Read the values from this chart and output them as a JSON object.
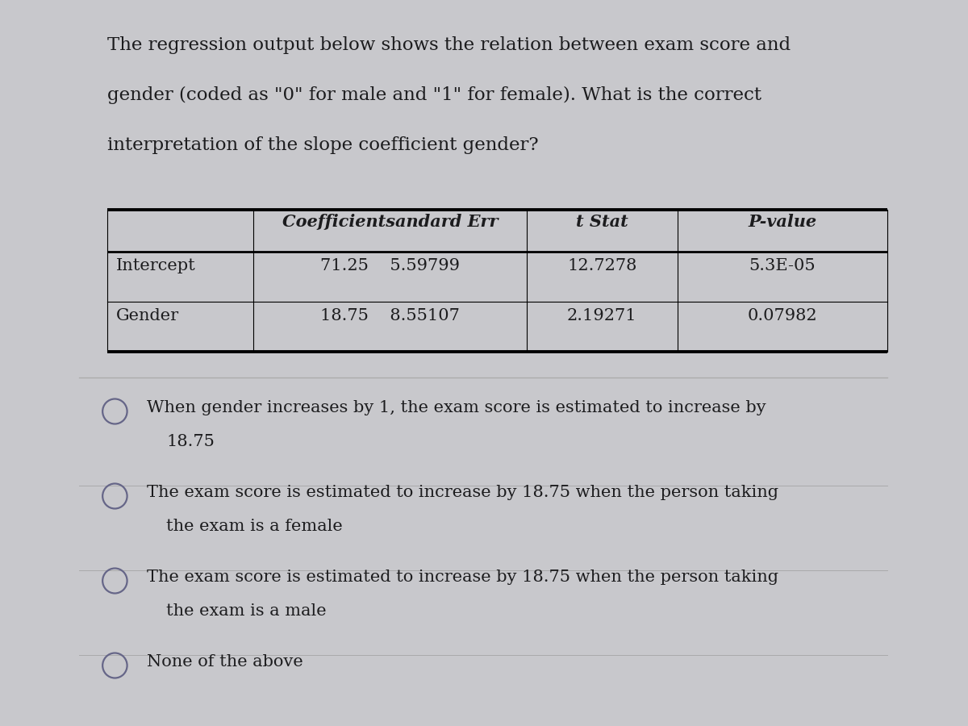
{
  "bg_color": "#c8c8cc",
  "card_color": "#e2e2e4",
  "question_text": [
    "The regression output below shows the relation between exam score and",
    "gender (coded as \"0\" for male and \"1\" for female). What is the correct",
    "interpretation of the slope coefficient gender?"
  ],
  "header_row": [
    "",
    "Coefficientsandard Err",
    "t Stat",
    "P-value"
  ],
  "data_rows": [
    [
      "Intercept",
      "71.25    5.59799",
      "12.7278",
      "5.3E-05"
    ],
    [
      "Gender",
      "18.75    8.55107",
      "2.19271",
      "0.07982"
    ]
  ],
  "options": [
    [
      "When gender increases by 1, the exam score is estimated to increase by",
      "18.75"
    ],
    [
      "The exam score is estimated to increase by 18.75 when the person taking",
      "the exam is a female"
    ],
    [
      "The exam score is estimated to increase by 18.75 when the person taking",
      "the exam is a male"
    ],
    [
      "None of the above"
    ]
  ],
  "text_color": "#1c1c1e",
  "circle_color": "#666688",
  "divider_color": "#aaaaaa",
  "font_size_question": 16.5,
  "font_size_table_header": 15,
  "font_size_table_data": 15,
  "font_size_options": 15
}
